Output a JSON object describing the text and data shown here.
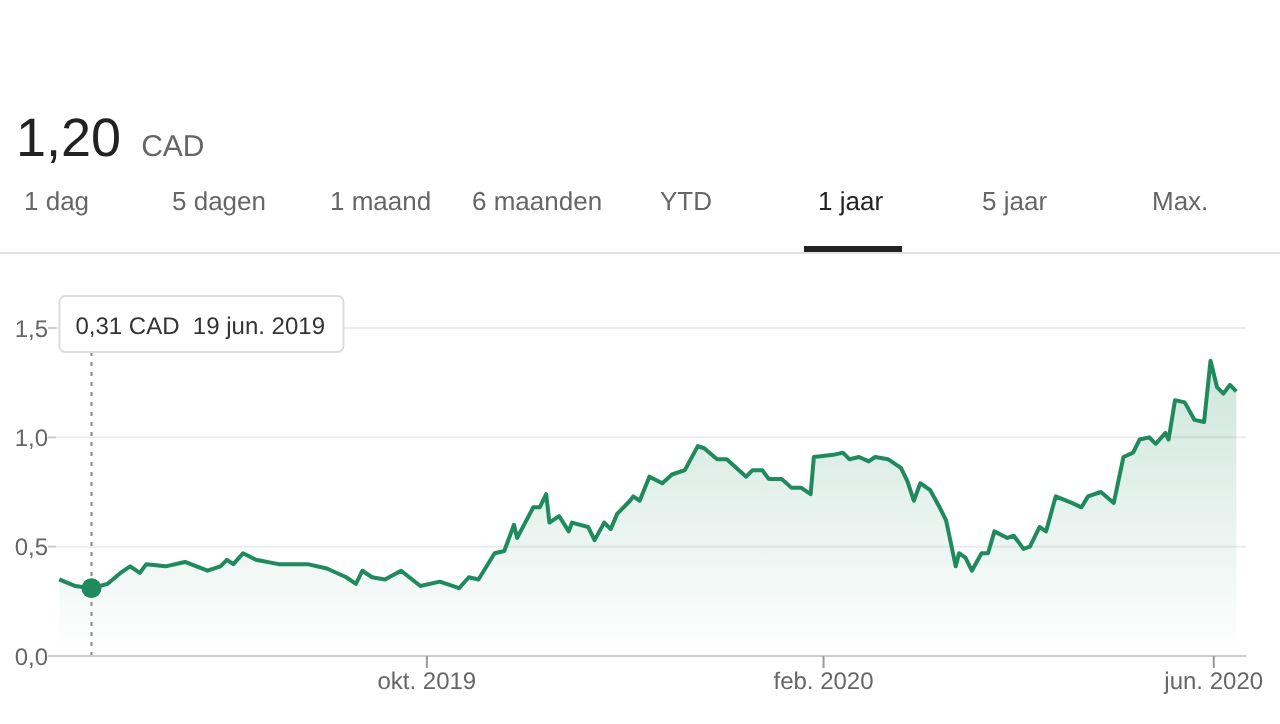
{
  "chart_data": {
    "type": "area",
    "title": "1,20",
    "subtitle": "CAD",
    "annotations": [
      "1 dag",
      "5 dagen",
      "1 maand",
      "6 maanden",
      "YTD",
      "1 jaar",
      "5 jaar",
      "Max.",
      "0,31 CAD  19 jun. 2019"
    ],
    "ref_lines": [
      {
        "axis": "x",
        "value": "2019-06-19",
        "label": null,
        "color": "#888888",
        "line_style": "dotted"
      }
    ],
    "x": [
      "2019-06-09",
      "2019-06-14",
      "2019-06-19",
      "2019-06-24",
      "2019-06-28",
      "2019-07-01",
      "2019-07-04",
      "2019-07-06",
      "2019-07-12",
      "2019-07-18",
      "2019-07-25",
      "2019-07-29",
      "2019-07-31",
      "2019-08-02",
      "2019-08-05",
      "2019-08-09",
      "2019-08-16",
      "2019-08-25",
      "2019-08-31",
      "2019-09-06",
      "2019-09-09",
      "2019-09-11",
      "2019-09-14",
      "2019-09-18",
      "2019-09-23",
      "2019-09-29",
      "2019-10-05",
      "2019-10-11",
      "2019-10-14",
      "2019-10-17",
      "2019-10-22",
      "2019-10-25",
      "2019-10-28",
      "2019-10-29",
      "2019-11-03",
      "2019-11-05",
      "2019-11-07",
      "2019-11-08",
      "2019-11-11",
      "2019-11-14",
      "2019-11-15",
      "2019-11-20",
      "2019-11-22",
      "2019-11-25",
      "2019-11-27",
      "2019-11-29",
      "2019-12-03",
      "2019-12-04",
      "2019-12-06",
      "2019-12-09",
      "2019-12-13",
      "2019-12-16",
      "2019-12-20",
      "2019-12-24",
      "2019-12-26",
      "2019-12-30",
      "2020-01-02",
      "2020-01-08",
      "2020-01-10",
      "2020-01-13",
      "2020-01-15",
      "2020-01-19",
      "2020-01-22",
      "2020-01-25",
      "2020-01-28",
      "2020-01-29",
      "2020-02-04",
      "2020-02-07",
      "2020-02-09",
      "2020-02-12",
      "2020-02-15",
      "2020-02-17",
      "2020-02-21",
      "2020-02-25",
      "2020-02-27",
      "2020-02-29",
      "2020-03-02",
      "2020-03-05",
      "2020-03-08",
      "2020-03-10",
      "2020-03-13",
      "2020-03-14",
      "2020-03-16",
      "2020-03-18",
      "2020-03-21",
      "2020-03-23",
      "2020-03-25",
      "2020-03-29",
      "2020-03-31",
      "2020-04-03",
      "2020-04-05",
      "2020-04-08",
      "2020-04-10",
      "2020-04-13",
      "2020-04-18",
      "2020-04-21",
      "2020-04-23",
      "2020-04-27",
      "2020-05-01",
      "2020-05-04",
      "2020-05-07",
      "2020-05-09",
      "2020-05-12",
      "2020-05-14",
      "2020-05-17",
      "2020-05-18",
      "2020-05-20",
      "2020-05-23",
      "2020-05-26",
      "2020-05-29",
      "2020-05-31",
      "2020-06-02",
      "2020-06-04",
      "2020-06-06",
      "2020-06-08"
    ],
    "series": [
      {
        "color": "#1e8a5e",
        "values": [
          0.35,
          0.32,
          0.31,
          0.33,
          0.38,
          0.41,
          0.38,
          0.42,
          0.41,
          0.43,
          0.39,
          0.41,
          0.44,
          0.42,
          0.47,
          0.44,
          0.42,
          0.42,
          0.4,
          0.36,
          0.33,
          0.39,
          0.36,
          0.35,
          0.39,
          0.32,
          0.34,
          0.31,
          0.36,
          0.35,
          0.47,
          0.48,
          0.6,
          0.54,
          0.68,
          0.68,
          0.74,
          0.61,
          0.64,
          0.57,
          0.61,
          0.59,
          0.53,
          0.61,
          0.58,
          0.65,
          0.71,
          0.73,
          0.71,
          0.82,
          0.79,
          0.83,
          0.85,
          0.96,
          0.95,
          0.9,
          0.9,
          0.82,
          0.85,
          0.85,
          0.81,
          0.81,
          0.77,
          0.77,
          0.74,
          0.91,
          0.92,
          0.93,
          0.9,
          0.91,
          0.89,
          0.91,
          0.9,
          0.86,
          0.8,
          0.71,
          0.79,
          0.76,
          0.68,
          0.62,
          0.41,
          0.47,
          0.45,
          0.39,
          0.47,
          0.47,
          0.57,
          0.54,
          0.55,
          0.49,
          0.5,
          0.59,
          0.57,
          0.73,
          0.7,
          0.68,
          0.73,
          0.75,
          0.7,
          0.91,
          0.93,
          0.99,
          1.0,
          0.97,
          1.02,
          0.99,
          1.17,
          1.16,
          1.08,
          1.07,
          1.35,
          1.23,
          1.2,
          1.24,
          1.21
        ]
      }
    ],
    "xlim": [
      "2019-06-08",
      "2020-06-11"
    ],
    "xticks": [
      {
        "value": "2019-10-01",
        "label": "okt. 2019"
      },
      {
        "value": "2020-02-01",
        "label": "feb. 2020"
      },
      {
        "value": "2020-06-01",
        "label": "jun. 2020"
      }
    ],
    "ylim": [
      0,
      1.5
    ],
    "yticks": [
      {
        "value": 0,
        "label": "0,0"
      },
      {
        "value": 0.5,
        "label": "0,5"
      },
      {
        "value": 1,
        "label": "1,0"
      },
      {
        "value": 1.5,
        "label": "1,5"
      }
    ],
    "grid": "y",
    "legend": false,
    "marker": "none",
    "line_style": "solid"
  }
}
